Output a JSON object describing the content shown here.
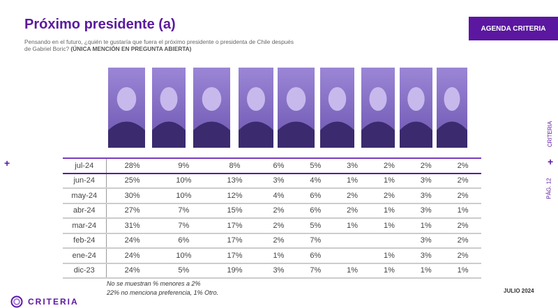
{
  "header": {
    "title": "Próximo presidente (a)",
    "question": "Pensando en el futuro, ¿quién te gustaría que fuera el próximo presidente o presidenta de Chile después de Gabriel Boric?",
    "question_tag": "(ÚNICA MENCIÓN EN PREGUNTA ABIERTA)",
    "badge": "AGENDA CRITERIA"
  },
  "side": {
    "brand": "CRITERIA",
    "page": "PÁG. 12",
    "plus": "+"
  },
  "table": {
    "rows": [
      {
        "label": "jul-24",
        "values": [
          "28%",
          "9%",
          "8%",
          "6%",
          "5%",
          "3%",
          "2%",
          "2%",
          "2%"
        ]
      },
      {
        "label": "jun-24",
        "values": [
          "25%",
          "10%",
          "13%",
          "3%",
          "4%",
          "1%",
          "1%",
          "3%",
          "2%"
        ]
      },
      {
        "label": "may-24",
        "values": [
          "30%",
          "10%",
          "12%",
          "4%",
          "6%",
          "2%",
          "2%",
          "3%",
          "2%"
        ]
      },
      {
        "label": "abr-24",
        "values": [
          "27%",
          "7%",
          "15%",
          "2%",
          "6%",
          "2%",
          "1%",
          "3%",
          "1%"
        ]
      },
      {
        "label": "mar-24",
        "values": [
          "31%",
          "7%",
          "17%",
          "2%",
          "5%",
          "1%",
          "1%",
          "1%",
          "2%"
        ]
      },
      {
        "label": "feb-24",
        "values": [
          "24%",
          "6%",
          "17%",
          "2%",
          "7%",
          "",
          "",
          "3%",
          "2%"
        ]
      },
      {
        "label": "ene-24",
        "values": [
          "24%",
          "10%",
          "17%",
          "1%",
          "6%",
          "",
          "1%",
          "3%",
          "2%"
        ]
      },
      {
        "label": "dic-23",
        "values": [
          "24%",
          "5%",
          "19%",
          "3%",
          "7%",
          "1%",
          "1%",
          "1%",
          "1%"
        ]
      }
    ]
  },
  "notes": [
    "No se muestran % menores a 2%",
    "22% no menciona preferencia, 1% Otro."
  ],
  "footer": {
    "date": "JULIO 2024",
    "logo": "CRITERIA"
  },
  "colors": {
    "brand": "#5b17a0"
  }
}
